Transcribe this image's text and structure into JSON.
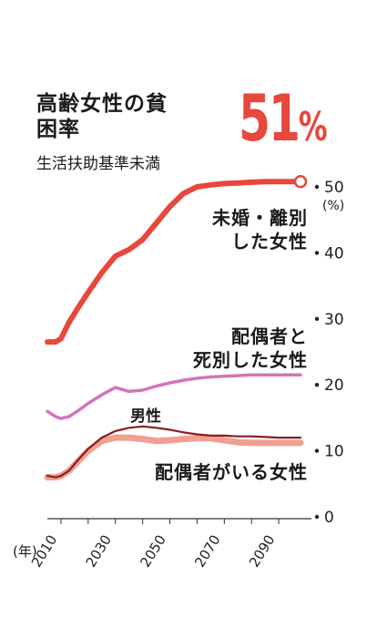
{
  "title": "高齢女性の貧困率",
  "subtitle": "生活扶助基準未満",
  "headline": {
    "value": "51",
    "unit": "%"
  },
  "x_unit_label": "(年)",
  "y_unit_label": "(%)",
  "men_label": "男性",
  "colors": {
    "unmarried": "#e8473c",
    "widowed": "#d474b8",
    "married": "#f0a090",
    "men": "#8a1c22",
    "headline": "#e8473c"
  },
  "chart_data": {
    "type": "line",
    "title": "高齢女性の貧困率",
    "subtitle": "生活扶助基準未満",
    "xlabel": "(年)",
    "ylabel": "(%)",
    "xlim": [
      2005,
      2100
    ],
    "ylim": [
      0,
      50
    ],
    "x_ticks": [
      2010,
      2030,
      2050,
      2070,
      2090
    ],
    "y_ticks": [
      0,
      10,
      20,
      30,
      40,
      50
    ],
    "grid": false,
    "series": [
      {
        "key": "unmarried",
        "name": "未婚・離別した女性",
        "x": [
          2005,
          2008,
          2010,
          2013,
          2016,
          2020,
          2025,
          2030,
          2035,
          2040,
          2045,
          2050,
          2055,
          2060,
          2065,
          2070,
          2075,
          2080,
          2085,
          2090,
          2095,
          2098
        ],
        "y": [
          26.5,
          26.5,
          27.0,
          29.5,
          31.5,
          34.0,
          37.0,
          39.5,
          40.5,
          42.0,
          44.5,
          47.0,
          49.0,
          50.0,
          50.3,
          50.5,
          50.6,
          50.7,
          50.8,
          50.8,
          50.8,
          50.8
        ]
      },
      {
        "key": "widowed",
        "name": "配偶者と死別した女性",
        "x": [
          2005,
          2008,
          2010,
          2013,
          2016,
          2020,
          2025,
          2030,
          2035,
          2040,
          2045,
          2050,
          2055,
          2060,
          2065,
          2070,
          2075,
          2080,
          2085,
          2090,
          2095,
          2098
        ],
        "y": [
          16.0,
          15.2,
          14.9,
          15.2,
          16.0,
          17.2,
          18.5,
          19.6,
          19.0,
          19.2,
          19.8,
          20.3,
          20.7,
          21.0,
          21.2,
          21.3,
          21.4,
          21.5,
          21.5,
          21.5,
          21.5,
          21.5
        ]
      },
      {
        "key": "men",
        "name": "男性",
        "x": [
          2005,
          2008,
          2010,
          2013,
          2016,
          2020,
          2025,
          2030,
          2035,
          2040,
          2045,
          2050,
          2055,
          2060,
          2065,
          2070,
          2075,
          2080,
          2085,
          2090,
          2095,
          2098
        ],
        "y": [
          6.2,
          6.0,
          6.2,
          7.0,
          8.5,
          10.3,
          12.0,
          13.0,
          13.5,
          13.7,
          13.5,
          13.2,
          12.8,
          12.5,
          12.3,
          12.3,
          12.2,
          12.2,
          12.1,
          12.0,
          12.0,
          12.0
        ]
      },
      {
        "key": "married",
        "name": "配偶者がいる女性",
        "x": [
          2005,
          2008,
          2010,
          2013,
          2016,
          2020,
          2025,
          2030,
          2035,
          2040,
          2045,
          2050,
          2055,
          2060,
          2065,
          2070,
          2075,
          2080,
          2085,
          2090,
          2095,
          2098
        ],
        "y": [
          6.0,
          6.0,
          6.2,
          7.0,
          8.3,
          10.0,
          11.5,
          12.0,
          12.0,
          11.8,
          11.5,
          11.6,
          11.8,
          11.9,
          11.9,
          11.6,
          11.3,
          11.2,
          11.2,
          11.2,
          11.2,
          11.2
        ]
      }
    ],
    "annotations": [
      {
        "series": "unmarried",
        "text": "未婚・離別した女性",
        "lines": [
          "未婚・離別",
          "した女性"
        ]
      },
      {
        "series": "widowed",
        "text": "配偶者と死別した女性",
        "lines": [
          "配偶者と",
          "死別した女性"
        ]
      },
      {
        "series": "married",
        "text": "配偶者がいる女性",
        "lines": [
          "配偶者がいる女性"
        ]
      },
      {
        "series": "men",
        "text": "男性"
      }
    ],
    "endpoint_marker": {
      "series": "unmarried",
      "x": 2098,
      "y": 50.8
    }
  }
}
